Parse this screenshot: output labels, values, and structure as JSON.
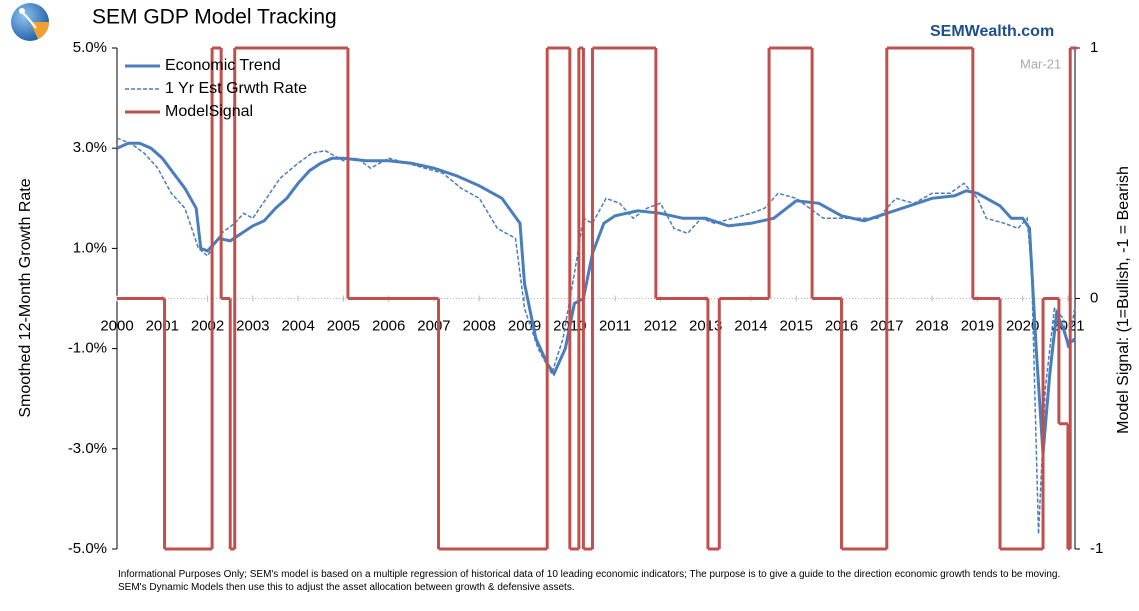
{
  "chart_data": {
    "type": "line",
    "title": "SEM GDP Model Tracking",
    "brand": "SEMWealth.com",
    "date_note": "Mar-21",
    "y_label": "Smoothed 12-Month Growth Rate",
    "y2_label": "Model Signal: (1=Bullish, -1 = Bearish",
    "footnote": "Informational Purposes Only; SEM's model is based on a multiple regression of historical data of 10 leading economic indicators; The purpose is to give a guide to the direction economic growth tends to be moving. SEM's Dynamic Models then use this to adjust the asset allocation between growth & defensive assets.",
    "xlim": [
      2000,
      2021.2
    ],
    "xticks": [
      2000,
      2001,
      2002,
      2003,
      2004,
      2005,
      2006,
      2007,
      2008,
      2009,
      2010,
      2011,
      2012,
      2013,
      2014,
      2015,
      2016,
      2017,
      2018,
      2019,
      2020,
      2021
    ],
    "ylim": [
      -5,
      5
    ],
    "yticks": [
      {
        "value": -5,
        "label": "-5.0%"
      },
      {
        "value": -3,
        "label": "-3.0%"
      },
      {
        "value": -1,
        "label": "-1.0%"
      },
      {
        "value": 1,
        "label": "1.0%"
      },
      {
        "value": 3,
        "label": "3.0%"
      },
      {
        "value": 5,
        "label": "5.0%"
      }
    ],
    "y2lim": [
      -1,
      1
    ],
    "y2ticks": [
      -1,
      0,
      1
    ],
    "legend": "upper left",
    "series": [
      {
        "name": "Economic Trend",
        "color": "#4a7ebb",
        "style": "solid",
        "x": [
          2000.0,
          2000.25,
          2000.5,
          2000.75,
          2001.0,
          2001.25,
          2001.5,
          2001.75,
          2001.85,
          2002.0,
          2002.25,
          2002.5,
          2002.75,
          2003.0,
          2003.25,
          2003.5,
          2003.75,
          2004.0,
          2004.25,
          2004.5,
          2004.75,
          2005.0,
          2005.5,
          2006.0,
          2006.5,
          2007.0,
          2007.5,
          2008.0,
          2008.5,
          2008.9,
          2009.0,
          2009.25,
          2009.5,
          2009.65,
          2009.9,
          2010.1,
          2010.3,
          2010.5,
          2010.75,
          2011.0,
          2011.5,
          2012.0,
          2012.5,
          2013.0,
          2013.5,
          2014.0,
          2014.5,
          2015.0,
          2015.5,
          2016.0,
          2016.5,
          2017.0,
          2017.5,
          2018.0,
          2018.5,
          2018.75,
          2019.0,
          2019.5,
          2019.75,
          2020.0,
          2020.15,
          2020.3,
          2020.45,
          2020.6,
          2020.75,
          2020.9,
          2021.0,
          2021.1,
          2021.15
        ],
        "values": [
          3.0,
          3.1,
          3.1,
          3.0,
          2.8,
          2.5,
          2.2,
          1.8,
          1.0,
          0.95,
          1.2,
          1.15,
          1.3,
          1.45,
          1.55,
          1.8,
          2.0,
          2.3,
          2.55,
          2.7,
          2.8,
          2.8,
          2.75,
          2.75,
          2.7,
          2.6,
          2.45,
          2.25,
          2.0,
          1.5,
          0.3,
          -0.8,
          -1.3,
          -1.5,
          -1.0,
          -0.1,
          0.0,
          0.9,
          1.5,
          1.65,
          1.75,
          1.7,
          1.6,
          1.6,
          1.45,
          1.5,
          1.6,
          1.95,
          1.9,
          1.65,
          1.55,
          1.7,
          1.85,
          2.0,
          2.05,
          2.15,
          2.1,
          1.85,
          1.6,
          1.6,
          1.4,
          -1.0,
          -3.1,
          -1.5,
          -0.3,
          -0.6,
          -0.9,
          -0.85,
          -0.8
        ]
      },
      {
        "name": "1 Yr Est Grwth Rate",
        "color": "#4a7ebb",
        "style": "dashed",
        "x": [
          2000.0,
          2000.3,
          2000.6,
          2000.9,
          2001.2,
          2001.5,
          2001.8,
          2002.0,
          2002.3,
          2002.6,
          2002.8,
          2003.0,
          2003.3,
          2003.6,
          2004.0,
          2004.3,
          2004.6,
          2005.0,
          2005.3,
          2005.6,
          2006.0,
          2006.4,
          2006.8,
          2007.2,
          2007.6,
          2008.0,
          2008.4,
          2008.8,
          2009.0,
          2009.3,
          2009.6,
          2009.85,
          2010.1,
          2010.3,
          2010.5,
          2010.8,
          2011.1,
          2011.4,
          2011.7,
          2012.0,
          2012.3,
          2012.6,
          2012.9,
          2013.2,
          2013.6,
          2014.0,
          2014.3,
          2014.6,
          2015.0,
          2015.3,
          2015.6,
          2016.0,
          2016.4,
          2016.8,
          2017.2,
          2017.6,
          2018.0,
          2018.4,
          2018.7,
          2019.0,
          2019.2,
          2019.6,
          2019.9,
          2020.1,
          2020.2,
          2020.35,
          2020.5,
          2020.7,
          2020.9,
          2021.0,
          2021.15
        ],
        "values": [
          3.2,
          3.1,
          2.9,
          2.6,
          2.1,
          1.8,
          1.0,
          0.85,
          1.3,
          1.5,
          1.7,
          1.6,
          2.0,
          2.4,
          2.7,
          2.9,
          2.95,
          2.75,
          2.8,
          2.6,
          2.8,
          2.7,
          2.6,
          2.5,
          2.2,
          2.0,
          1.4,
          1.2,
          -0.2,
          -1.0,
          -1.5,
          -0.8,
          0.5,
          1.6,
          1.5,
          2.0,
          1.9,
          1.6,
          1.8,
          1.9,
          1.4,
          1.3,
          1.6,
          1.5,
          1.6,
          1.7,
          1.8,
          2.1,
          2.0,
          1.8,
          1.6,
          1.6,
          1.6,
          1.6,
          2.0,
          1.9,
          2.1,
          2.1,
          2.3,
          2.0,
          1.6,
          1.5,
          1.4,
          1.6,
          0.5,
          -4.7,
          -1.8,
          -0.2,
          -0.4,
          -1.0,
          -0.2
        ]
      },
      {
        "name": "ModelSignal",
        "color": "#c0504d",
        "style": "step",
        "axis": "y2",
        "x": [
          2000.0,
          2001.05,
          2002.1,
          2002.3,
          2002.5,
          2002.6,
          2005.1,
          2007.1,
          2009.5,
          2010.0,
          2010.2,
          2010.3,
          2010.5,
          2011.9,
          2013.05,
          2013.3,
          2014.4,
          2015.35,
          2016.0,
          2017.0,
          2018.9,
          2019.5,
          2020.45,
          2020.8,
          2021.0,
          2021.05
        ],
        "values": [
          0,
          -1,
          1,
          0,
          -1,
          1,
          0,
          -1,
          1,
          -1,
          1,
          -1,
          1,
          0,
          -1,
          0,
          1,
          0,
          -1,
          1,
          0,
          -1,
          0,
          -0.5,
          -1,
          1
        ]
      }
    ]
  }
}
